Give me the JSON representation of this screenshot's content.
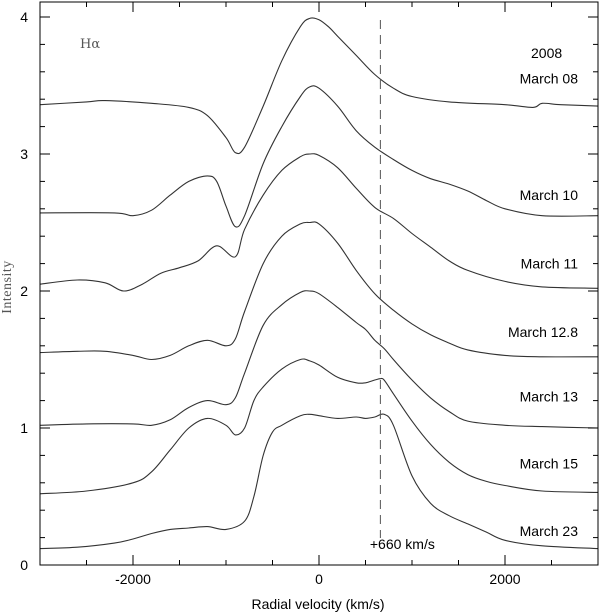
{
  "chart_data": {
    "type": "line",
    "line_label": "Hα",
    "year_label": "2008",
    "xlabel": "Radial velocity (km/s)",
    "ylabel": "Intensity",
    "xlim": [
      -3000,
      3000
    ],
    "ylim": [
      0,
      4.1
    ],
    "x_ticks": [
      -2000,
      0,
      2000
    ],
    "x_tick_labels": [
      "-2000",
      "0",
      "2000"
    ],
    "y_ticks": [
      0,
      1,
      2,
      3,
      4
    ],
    "y_tick_labels": [
      "0",
      "1",
      "2",
      "3",
      "4"
    ],
    "grid": false,
    "marker_line": {
      "x": 660,
      "label": "+660 km/s",
      "style": "dashed"
    },
    "series": [
      {
        "name": "March 08",
        "label_y": 3.55,
        "x": [
          -3000,
          -2500,
          -2300,
          -1800,
          -1400,
          -1200,
          -1000,
          -900,
          -800,
          -600,
          -400,
          -200,
          -100,
          0,
          100,
          200,
          400,
          600,
          800,
          1000,
          1400,
          2000,
          2300,
          2400,
          2600,
          3000
        ],
        "y": [
          3.36,
          3.38,
          3.39,
          3.37,
          3.34,
          3.28,
          3.12,
          3.01,
          3.05,
          3.35,
          3.68,
          3.93,
          3.99,
          3.98,
          3.93,
          3.86,
          3.72,
          3.58,
          3.48,
          3.42,
          3.38,
          3.36,
          3.34,
          3.37,
          3.36,
          3.35
        ]
      },
      {
        "name": "March 10",
        "label_y": 2.7,
        "x": [
          -3000,
          -2200,
          -2000,
          -1800,
          -1600,
          -1400,
          -1200,
          -1100,
          -1000,
          -900,
          -800,
          -600,
          -400,
          -200,
          -100,
          0,
          200,
          400,
          600,
          800,
          1000,
          1200,
          1400,
          1600,
          1800,
          2000,
          2400,
          3000
        ],
        "y": [
          2.57,
          2.57,
          2.55,
          2.59,
          2.7,
          2.8,
          2.84,
          2.8,
          2.62,
          2.47,
          2.55,
          2.93,
          3.2,
          3.42,
          3.49,
          3.48,
          3.35,
          3.17,
          3.05,
          2.96,
          2.88,
          2.82,
          2.78,
          2.73,
          2.66,
          2.6,
          2.55,
          2.55
        ]
      },
      {
        "name": "March 11",
        "label_y": 2.2,
        "x": [
          -3000,
          -2600,
          -2300,
          -2100,
          -1900,
          -1700,
          -1500,
          -1300,
          -1100,
          -900,
          -800,
          -600,
          -400,
          -200,
          -100,
          0,
          200,
          400,
          600,
          800,
          1000,
          1200,
          1400,
          1600,
          2000,
          2400,
          3000
        ],
        "y": [
          2.05,
          2.08,
          2.06,
          2.0,
          2.05,
          2.13,
          2.17,
          2.22,
          2.33,
          2.25,
          2.45,
          2.7,
          2.88,
          2.98,
          3.0,
          2.99,
          2.9,
          2.75,
          2.61,
          2.53,
          2.42,
          2.32,
          2.22,
          2.15,
          2.07,
          2.03,
          2.02
        ]
      },
      {
        "name": "March 12.8",
        "label_y": 1.7,
        "x": [
          -3000,
          -2600,
          -2300,
          -2000,
          -1800,
          -1600,
          -1400,
          -1200,
          -1000,
          -900,
          -800,
          -600,
          -400,
          -200,
          -100,
          0,
          200,
          400,
          600,
          800,
          1000,
          1200,
          1400,
          1600,
          2000,
          2400,
          3000
        ],
        "y": [
          1.55,
          1.56,
          1.56,
          1.53,
          1.5,
          1.53,
          1.6,
          1.64,
          1.6,
          1.65,
          1.85,
          2.2,
          2.4,
          2.49,
          2.5,
          2.49,
          2.35,
          2.15,
          1.98,
          1.86,
          1.76,
          1.68,
          1.62,
          1.57,
          1.53,
          1.52,
          1.52
        ]
      },
      {
        "name": "March 13",
        "label_y": 1.23,
        "x": [
          -3000,
          -2500,
          -2000,
          -1800,
          -1600,
          -1400,
          -1200,
          -1000,
          -900,
          -800,
          -600,
          -400,
          -200,
          -100,
          0,
          200,
          400,
          500,
          600,
          700,
          800,
          1000,
          1200,
          1400,
          1600,
          2000,
          2400,
          3000
        ],
        "y": [
          1.02,
          1.03,
          1.03,
          1.02,
          1.06,
          1.15,
          1.2,
          1.17,
          1.22,
          1.4,
          1.75,
          1.9,
          1.99,
          2.0,
          1.98,
          1.88,
          1.77,
          1.72,
          1.64,
          1.58,
          1.5,
          1.35,
          1.22,
          1.12,
          1.05,
          1.02,
          1.01,
          1.0
        ]
      },
      {
        "name": "March 15",
        "label_y": 0.74,
        "x": [
          -3000,
          -2500,
          -2000,
          -1800,
          -1600,
          -1400,
          -1200,
          -1000,
          -900,
          -800,
          -700,
          -600,
          -400,
          -200,
          -100,
          0,
          200,
          400,
          500,
          600,
          660,
          700,
          800,
          1000,
          1200,
          1400,
          1600,
          1800,
          2000,
          2400,
          3000
        ],
        "y": [
          0.52,
          0.54,
          0.6,
          0.68,
          0.84,
          1.0,
          1.07,
          1.02,
          0.95,
          1.0,
          1.2,
          1.3,
          1.43,
          1.5,
          1.49,
          1.46,
          1.37,
          1.33,
          1.33,
          1.35,
          1.36,
          1.35,
          1.25,
          1.05,
          0.88,
          0.75,
          0.66,
          0.61,
          0.58,
          0.54,
          0.53
        ]
      },
      {
        "name": "March 23",
        "label_y": 0.25,
        "x": [
          -3000,
          -2600,
          -2200,
          -2000,
          -1800,
          -1600,
          -1400,
          -1200,
          -1000,
          -800,
          -700,
          -600,
          -500,
          -400,
          -200,
          -100,
          0,
          200,
          400,
          500,
          600,
          700,
          800,
          1000,
          1200,
          1400,
          1600,
          1800,
          2000,
          2400,
          3000
        ],
        "y": [
          0.12,
          0.13,
          0.16,
          0.19,
          0.23,
          0.26,
          0.27,
          0.28,
          0.26,
          0.32,
          0.5,
          0.8,
          0.97,
          1.02,
          1.09,
          1.1,
          1.09,
          1.07,
          1.08,
          1.07,
          1.08,
          1.1,
          1.02,
          0.65,
          0.45,
          0.36,
          0.3,
          0.24,
          0.18,
          0.14,
          0.12
        ]
      }
    ]
  }
}
